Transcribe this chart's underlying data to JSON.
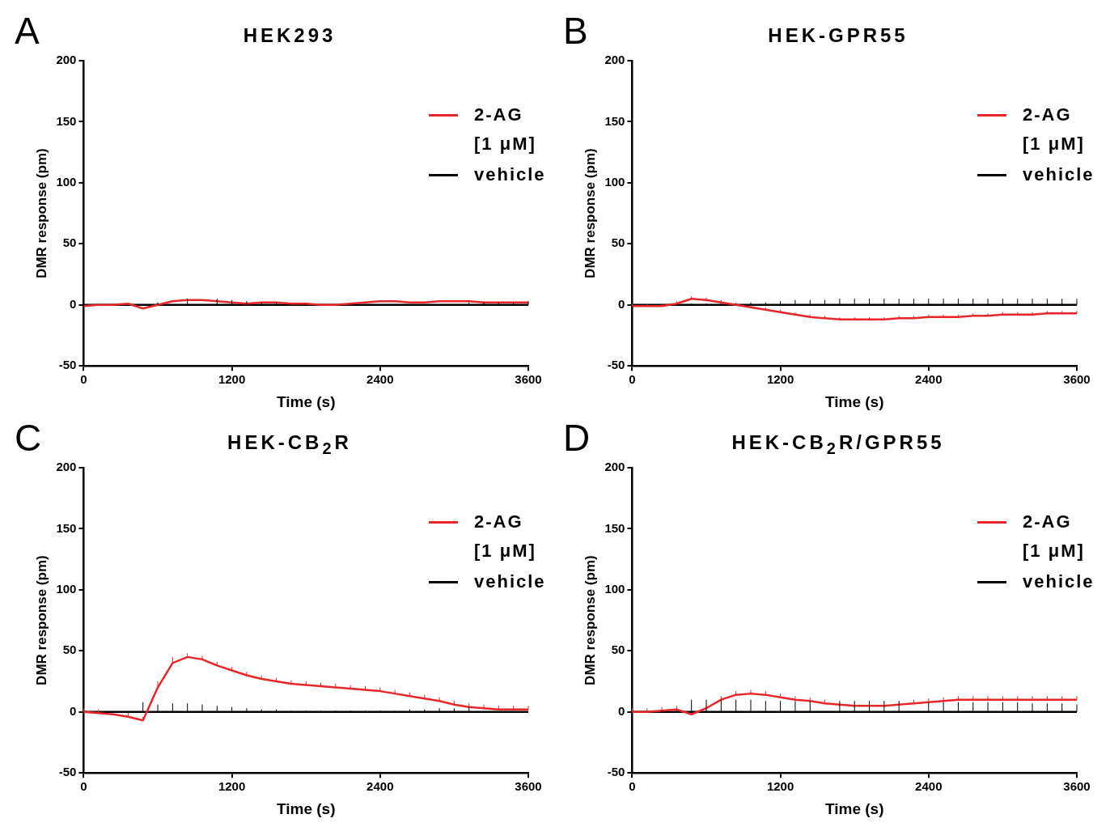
{
  "chart_data": [
    {
      "type": "line",
      "title": "HEK293",
      "annotations": [
        "A"
      ],
      "xlabel": "Time (s)",
      "ylabel": "DMR response (pm)",
      "legend": "top right",
      "grid": false,
      "xlim": [
        0,
        3600
      ],
      "xticks": [
        0,
        1200,
        2400,
        3600
      ],
      "ylim": [
        -50,
        200
      ],
      "yticks": [
        -50,
        0,
        50,
        100,
        150,
        200
      ],
      "x": [
        0,
        120,
        240,
        360,
        480,
        600,
        720,
        840,
        960,
        1080,
        1200,
        1320,
        1440,
        1560,
        1680,
        1800,
        1920,
        2040,
        2160,
        2280,
        2400,
        2520,
        2640,
        2760,
        2880,
        3000,
        3120,
        3240,
        3360,
        3480,
        3600
      ],
      "series": [
        {
          "name": "2-AG [1 μM]",
          "color": "#e8262a",
          "values": [
            -1,
            0,
            0,
            1,
            -3,
            0,
            3,
            4,
            4,
            3,
            2,
            1,
            2,
            2,
            1,
            1,
            0,
            0,
            1,
            2,
            3,
            3,
            2,
            2,
            3,
            3,
            3,
            2,
            2,
            2,
            2
          ]
        },
        {
          "name": "vehicle",
          "color": "#000000",
          "values": [
            0,
            0,
            0,
            0,
            0,
            0,
            0,
            0,
            0,
            0,
            0,
            0,
            0,
            0,
            0,
            0,
            0,
            0,
            0,
            0,
            0,
            0,
            0,
            0,
            0,
            0,
            0,
            0,
            0,
            0,
            0
          ],
          "errors": [
            null,
            null,
            null,
            null,
            null,
            [
              0,
              2
            ],
            null,
            [
              0,
              5
            ],
            null,
            [
              0,
              5
            ],
            [
              0,
              4
            ],
            [
              0,
              3
            ],
            [
              0,
              2
            ],
            [
              0,
              2
            ],
            null,
            null,
            null,
            null,
            null,
            null,
            null,
            null,
            null,
            null,
            null,
            null,
            [
              0,
              2
            ],
            [
              0,
              2
            ],
            [
              0,
              2
            ],
            [
              0,
              2
            ],
            [
              0,
              3
            ]
          ]
        }
      ]
    },
    {
      "type": "line",
      "title": "HEK-GPR55",
      "annotations": [
        "B"
      ],
      "xlabel": "Time (s)",
      "ylabel": "DMR response (pm)",
      "legend": "top right",
      "grid": false,
      "xlim": [
        0,
        3600
      ],
      "xticks": [
        0,
        1200,
        2400,
        3600
      ],
      "ylim": [
        -50,
        200
      ],
      "yticks": [
        -50,
        0,
        50,
        100,
        150,
        200
      ],
      "x": [
        0,
        120,
        240,
        360,
        480,
        600,
        720,
        840,
        960,
        1080,
        1200,
        1320,
        1440,
        1560,
        1680,
        1800,
        1920,
        2040,
        2160,
        2280,
        2400,
        2520,
        2640,
        2760,
        2880,
        3000,
        3120,
        3240,
        3360,
        3480,
        3600
      ],
      "series": [
        {
          "name": "2-AG [1 μM]",
          "color": "#e8262a",
          "values": [
            -1,
            -1,
            -1,
            1,
            5,
            4,
            2,
            0,
            -2,
            -4,
            -6,
            -8,
            -10,
            -11,
            -12,
            -12,
            -12,
            -12,
            -11,
            -11,
            -10,
            -10,
            -10,
            -9,
            -9,
            -8,
            -8,
            -8,
            -7,
            -7,
            -7
          ],
          "errors": [
            [
              -1,
              1
            ],
            [
              -1,
              1
            ],
            [
              -1,
              1
            ],
            [
              1,
              3
            ],
            [
              5,
              7
            ],
            [
              4,
              6
            ],
            [
              2,
              4
            ],
            [
              0,
              2
            ],
            [
              -2,
              0
            ],
            [
              -4,
              -2
            ],
            [
              -6,
              -4
            ],
            [
              -8,
              -6
            ],
            [
              -10,
              -8
            ],
            [
              -11,
              -9
            ],
            [
              -12,
              -10
            ],
            [
              -12,
              -10
            ],
            [
              -12,
              -10
            ],
            [
              -12,
              -10
            ],
            [
              -11,
              -9
            ],
            [
              -11,
              -9
            ],
            [
              -10,
              -8
            ],
            [
              -10,
              -8
            ],
            [
              -10,
              -8
            ],
            [
              -9,
              -7
            ],
            [
              -9,
              -7
            ],
            [
              -8,
              -6
            ],
            [
              -8,
              -6
            ],
            [
              -8,
              -6
            ],
            [
              -7,
              -5
            ],
            [
              -7,
              -5
            ],
            [
              -7,
              -5
            ]
          ]
        },
        {
          "name": "vehicle",
          "color": "#000000",
          "values": [
            0,
            0,
            0,
            0,
            0,
            0,
            0,
            0,
            0,
            0,
            0,
            0,
            0,
            0,
            0,
            0,
            0,
            0,
            0,
            0,
            0,
            0,
            0,
            0,
            0,
            0,
            0,
            0,
            0,
            0,
            0
          ],
          "errors": [
            [
              0,
              0
            ],
            [
              0,
              0
            ],
            [
              0,
              0
            ],
            [
              0,
              0
            ],
            [
              0,
              1
            ],
            [
              0,
              1
            ],
            [
              0,
              1
            ],
            [
              0,
              1
            ],
            [
              0,
              2
            ],
            [
              0,
              2
            ],
            [
              0,
              3
            ],
            [
              0,
              4
            ],
            [
              0,
              4
            ],
            [
              0,
              4
            ],
            [
              0,
              5
            ],
            [
              0,
              5
            ],
            [
              0,
              5
            ],
            [
              0,
              5
            ],
            [
              0,
              5
            ],
            [
              0,
              5
            ],
            [
              0,
              5
            ],
            [
              0,
              5
            ],
            [
              0,
              5
            ],
            [
              0,
              5
            ],
            [
              0,
              5
            ],
            [
              0,
              5
            ],
            [
              0,
              5
            ],
            [
              0,
              5
            ],
            [
              0,
              5
            ],
            [
              0,
              5
            ],
            [
              0,
              5
            ]
          ]
        }
      ]
    },
    {
      "type": "line",
      "title": "HEK-CB$_{2}$R",
      "annotations": [
        "C"
      ],
      "xlabel": "Time (s)",
      "ylabel": "DMR response (pm)",
      "legend": "top right",
      "grid": false,
      "xlim": [
        0,
        3600
      ],
      "xticks": [
        0,
        1200,
        2400,
        3600
      ],
      "ylim": [
        -50,
        200
      ],
      "yticks": [
        -50,
        0,
        50,
        100,
        150,
        200
      ],
      "x": [
        0,
        120,
        240,
        360,
        480,
        600,
        720,
        840,
        960,
        1080,
        1200,
        1320,
        1440,
        1560,
        1680,
        1800,
        1920,
        2040,
        2160,
        2280,
        2400,
        2520,
        2640,
        2760,
        2880,
        3000,
        3120,
        3240,
        3360,
        3480,
        3600
      ],
      "series": [
        {
          "name": "2-AG [1 μM]",
          "color": "#e8262a",
          "values": [
            0,
            -1,
            -2,
            -4,
            -7,
            20,
            40,
            45,
            43,
            38,
            34,
            30,
            27,
            25,
            23,
            22,
            21,
            20,
            19,
            18,
            17,
            15,
            13,
            11,
            9,
            6,
            4,
            3,
            2,
            2,
            2
          ],
          "errors": [
            [
              0,
              3
            ],
            [
              -1,
              2
            ],
            null,
            [
              -4,
              -1
            ],
            [
              -7,
              -4
            ],
            [
              20,
              25
            ],
            [
              40,
              45
            ],
            [
              45,
              48
            ],
            [
              43,
              46
            ],
            [
              38,
              41
            ],
            [
              34,
              37
            ],
            [
              30,
              33
            ],
            [
              27,
              30
            ],
            [
              25,
              28
            ],
            [
              23,
              26
            ],
            [
              22,
              25
            ],
            [
              21,
              24
            ],
            [
              20,
              23
            ],
            [
              19,
              22
            ],
            [
              18,
              21
            ],
            [
              17,
              20
            ],
            [
              15,
              18
            ],
            [
              13,
              16
            ],
            [
              11,
              14
            ],
            [
              9,
              12
            ],
            [
              6,
              9
            ],
            [
              4,
              7
            ],
            [
              3,
              6
            ],
            [
              2,
              5
            ],
            [
              2,
              5
            ],
            [
              2,
              5
            ]
          ]
        },
        {
          "name": "vehicle",
          "color": "#000000",
          "values": [
            0,
            0,
            0,
            0,
            0,
            0,
            0,
            0,
            0,
            0,
            0,
            0,
            0,
            0,
            0,
            0,
            0,
            0,
            0,
            0,
            0,
            0,
            0,
            0,
            0,
            0,
            0,
            0,
            0,
            0,
            0
          ],
          "errors": [
            [
              0,
              0
            ],
            [
              0,
              0
            ],
            [
              0,
              0
            ],
            [
              0,
              0
            ],
            [
              0,
              8
            ],
            [
              0,
              6
            ],
            [
              0,
              7
            ],
            [
              0,
              7
            ],
            [
              0,
              6
            ],
            [
              0,
              5
            ],
            [
              0,
              4
            ],
            [
              0,
              3
            ],
            [
              0,
              2
            ],
            [
              0,
              2
            ],
            [
              0,
              1
            ],
            [
              0,
              1
            ],
            [
              0,
              1
            ],
            [
              0,
              1
            ],
            [
              0,
              1
            ],
            [
              0,
              1
            ],
            [
              0,
              1
            ],
            [
              0,
              1
            ],
            [
              0,
              2
            ],
            [
              0,
              2
            ],
            [
              0,
              3
            ],
            [
              0,
              3
            ],
            [
              0,
              4
            ],
            null,
            null,
            null,
            null
          ]
        }
      ]
    },
    {
      "type": "line",
      "title": "HEK-CB$_{2}$R/GPR55",
      "annotations": [
        "D"
      ],
      "xlabel": "Time (s)",
      "ylabel": "DMR response (pm)",
      "legend": "top right",
      "grid": false,
      "xlim": [
        0,
        3600
      ],
      "xticks": [
        0,
        1200,
        2400,
        3600
      ],
      "ylim": [
        -50,
        200
      ],
      "yticks": [
        -50,
        0,
        50,
        100,
        150,
        200
      ],
      "x": [
        0,
        120,
        240,
        360,
        480,
        600,
        720,
        840,
        960,
        1080,
        1200,
        1320,
        1440,
        1560,
        1680,
        1800,
        1920,
        2040,
        2160,
        2280,
        2400,
        2520,
        2640,
        2760,
        2880,
        3000,
        3120,
        3240,
        3360,
        3480,
        3600
      ],
      "series": [
        {
          "name": "2-AG [1 μM]",
          "color": "#e8262a",
          "values": [
            0,
            0,
            1,
            2,
            -2,
            3,
            10,
            14,
            15,
            14,
            12,
            10,
            9,
            7,
            6,
            5,
            5,
            5,
            6,
            7,
            8,
            9,
            10,
            10,
            10,
            10,
            10,
            10,
            10,
            10,
            10
          ],
          "errors": [
            [
              0,
              3
            ],
            [
              0,
              3
            ],
            [
              1,
              4
            ],
            [
              2,
              5
            ],
            null,
            [
              3,
              6
            ],
            [
              10,
              13
            ],
            [
              14,
              17
            ],
            [
              15,
              18
            ],
            [
              14,
              17
            ],
            [
              12,
              15
            ],
            [
              10,
              13
            ],
            [
              9,
              12
            ],
            [
              7,
              10
            ],
            null,
            null,
            null,
            null,
            null,
            [
              7,
              10
            ],
            [
              8,
              11
            ],
            [
              9,
              12
            ],
            [
              10,
              13
            ],
            [
              10,
              13
            ],
            [
              10,
              13
            ],
            [
              10,
              13
            ],
            [
              10,
              13
            ],
            [
              10,
              13
            ],
            [
              10,
              13
            ],
            [
              10,
              13
            ],
            [
              10,
              13
            ]
          ]
        },
        {
          "name": "vehicle",
          "color": "#000000",
          "values": [
            0,
            0,
            0,
            0,
            0,
            0,
            0,
            0,
            0,
            0,
            0,
            0,
            0,
            0,
            0,
            0,
            0,
            0,
            0,
            0,
            0,
            0,
            0,
            0,
            0,
            0,
            0,
            0,
            0,
            0,
            0
          ],
          "errors": [
            [
              0,
              0
            ],
            [
              0,
              0
            ],
            [
              0,
              1
            ],
            [
              0,
              1
            ],
            [
              0,
              10
            ],
            [
              0,
              10
            ],
            [
              0,
              10
            ],
            [
              0,
              10
            ],
            [
              0,
              10
            ],
            [
              0,
              9
            ],
            [
              0,
              9
            ],
            [
              0,
              9
            ],
            [
              0,
              9
            ],
            null,
            [
              0,
              9
            ],
            [
              0,
              9
            ],
            [
              0,
              9
            ],
            [
              0,
              9
            ],
            [
              0,
              9
            ],
            null,
            [
              0,
              8
            ],
            [
              0,
              8
            ],
            [
              0,
              8
            ],
            [
              0,
              8
            ],
            [
              0,
              8
            ],
            [
              0,
              8
            ],
            [
              0,
              8
            ],
            [
              0,
              7
            ],
            [
              0,
              7
            ],
            [
              0,
              7
            ],
            [
              0,
              6
            ]
          ]
        }
      ]
    }
  ]
}
